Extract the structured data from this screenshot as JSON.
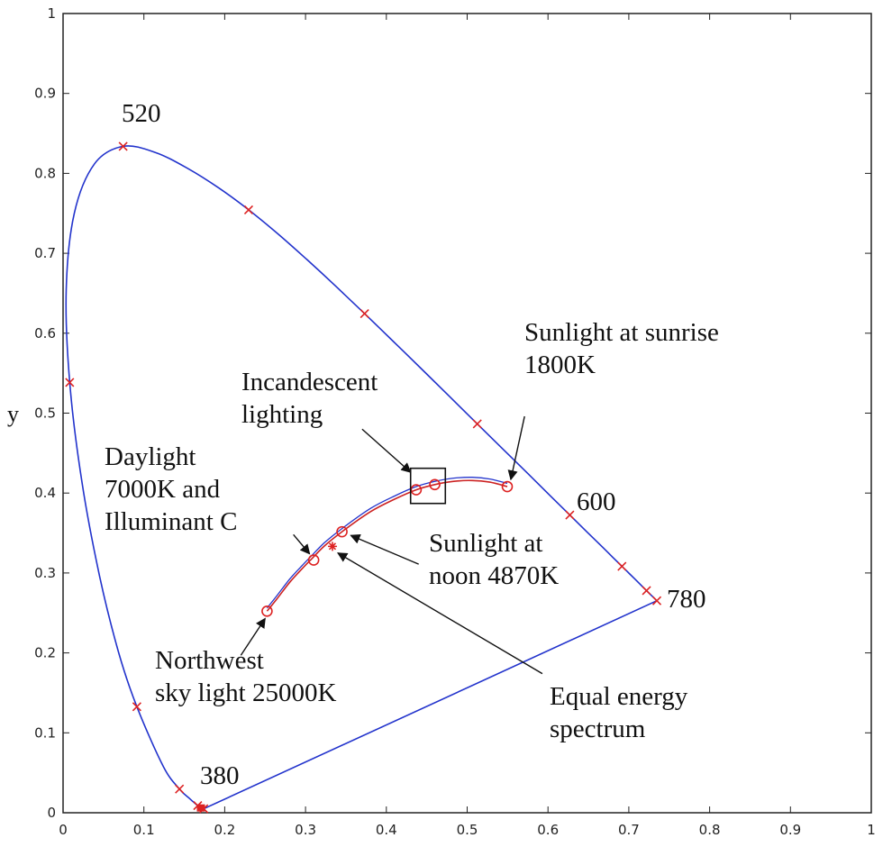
{
  "chart_data": {
    "type": "line",
    "title": "",
    "xlabel": "",
    "ylabel": "y",
    "xlim": [
      0,
      1
    ],
    "ylim": [
      0,
      1
    ],
    "grid": false,
    "x_ticks": [
      "0",
      "0.1",
      "0.2",
      "0.3",
      "0.4",
      "0.5",
      "0.6",
      "0.7",
      "0.8",
      "0.9",
      "1"
    ],
    "y_ticks": [
      "0",
      "0.1",
      "0.2",
      "0.3",
      "0.4",
      "0.5",
      "0.6",
      "0.7",
      "0.8",
      "0.9",
      "1"
    ],
    "colors": {
      "locus": "#2233cc",
      "planckian": "#cc2222",
      "marker": "#dd2222",
      "axis": "#222222"
    },
    "series": [
      {
        "name": "spectral locus",
        "color": "#2233cc",
        "points": [
          [
            0.1741,
            0.005
          ],
          [
            0.172,
            0.0048
          ],
          [
            0.1666,
            0.0089
          ],
          [
            0.1566,
            0.0177
          ],
          [
            0.144,
            0.0297
          ],
          [
            0.1241,
            0.0578
          ],
          [
            0.0913,
            0.1327
          ],
          [
            0.0687,
            0.2007
          ],
          [
            0.0454,
            0.295
          ],
          [
            0.0235,
            0.4127
          ],
          [
            0.0082,
            0.5384
          ],
          [
            0.0039,
            0.6548
          ],
          [
            0.0139,
            0.7502
          ],
          [
            0.0389,
            0.812
          ],
          [
            0.0743,
            0.8338
          ],
          [
            0.1142,
            0.8262
          ],
          [
            0.1547,
            0.8059
          ],
          [
            0.1929,
            0.7816
          ],
          [
            0.2296,
            0.7543
          ],
          [
            0.2658,
            0.7243
          ],
          [
            0.3016,
            0.6923
          ],
          [
            0.3373,
            0.6589
          ],
          [
            0.3731,
            0.6245
          ],
          [
            0.4087,
            0.5896
          ],
          [
            0.4441,
            0.5547
          ],
          [
            0.4788,
            0.5202
          ],
          [
            0.5125,
            0.4866
          ],
          [
            0.5448,
            0.4544
          ],
          [
            0.5752,
            0.4242
          ],
          [
            0.6029,
            0.3965
          ],
          [
            0.627,
            0.3725
          ],
          [
            0.6482,
            0.3514
          ],
          [
            0.6658,
            0.334
          ],
          [
            0.6801,
            0.3197
          ],
          [
            0.6915,
            0.3083
          ],
          [
            0.7006,
            0.2993
          ],
          [
            0.714,
            0.2859
          ],
          [
            0.7219,
            0.278
          ],
          [
            0.7347,
            0.2653
          ],
          [
            0.1741,
            0.005
          ]
        ]
      },
      {
        "name": "blackbody locus",
        "color": "#cc2222",
        "points": [
          [
            0.2524,
            0.2522
          ],
          [
            0.2643,
            0.2672
          ],
          [
            0.2804,
            0.2883
          ],
          [
            0.2952,
            0.3047
          ],
          [
            0.3066,
            0.3166
          ],
          [
            0.3231,
            0.3336
          ],
          [
            0.3451,
            0.3516
          ],
          [
            0.3805,
            0.3768
          ],
          [
            0.4101,
            0.3923
          ],
          [
            0.4369,
            0.4041
          ],
          [
            0.4599,
            0.4106
          ],
          [
            0.4835,
            0.4147
          ],
          [
            0.5064,
            0.4157
          ],
          [
            0.5281,
            0.4136
          ],
          [
            0.5496,
            0.4081
          ]
        ]
      }
    ],
    "x_markers": [
      [
        0.1741,
        0.005
      ],
      [
        0.1666,
        0.0089
      ],
      [
        0.144,
        0.0297
      ],
      [
        0.0913,
        0.1327
      ],
      [
        0.0082,
        0.5384
      ],
      [
        0.0743,
        0.8338
      ],
      [
        0.2296,
        0.7543
      ],
      [
        0.3731,
        0.6245
      ],
      [
        0.5125,
        0.4866
      ],
      [
        0.627,
        0.3725
      ],
      [
        0.6915,
        0.3083
      ],
      [
        0.7219,
        0.278
      ],
      [
        0.7347,
        0.2653
      ]
    ],
    "o_markers": [
      [
        0.2524,
        0.2522
      ],
      [
        0.3101,
        0.3162
      ],
      [
        0.3451,
        0.3516
      ],
      [
        0.4369,
        0.4041
      ],
      [
        0.4599,
        0.4106
      ],
      [
        0.5496,
        0.4081
      ]
    ],
    "star_markers": [
      [
        0.3333,
        0.3333
      ]
    ],
    "box": {
      "x": [
        0.43,
        0.473
      ],
      "y": [
        0.387,
        0.431
      ]
    },
    "annotations": {
      "wl_520": "520",
      "wl_600": "600",
      "wl_780": "780",
      "wl_380": "380",
      "sunrise_1": "Sunlight at sunrise",
      "sunrise_2": "1800K",
      "incand_1": "Incandescent",
      "incand_2": "lighting",
      "daylight_1": "Daylight",
      "daylight_2": "7000K and",
      "daylight_3": "Illuminant C",
      "noon_1": "Sunlight at",
      "noon_2": "noon 4870K",
      "northwest_1": "Northwest",
      "northwest_2": "sky light 25000K",
      "equal_1": "Equal energy",
      "equal_2": "spectrum"
    },
    "arrows": [
      {
        "name": "sunrise-arrow",
        "from": [
          0.571,
          0.496
        ],
        "to": [
          0.554,
          0.417
        ]
      },
      {
        "name": "incandescent-arrow",
        "from": [
          0.37,
          0.48
        ],
        "to": [
          0.43,
          0.426
        ]
      },
      {
        "name": "daylight-arrow",
        "from": [
          0.285,
          0.348
        ],
        "to": [
          0.305,
          0.324
        ]
      },
      {
        "name": "noon-arrow",
        "from": [
          0.44,
          0.311
        ],
        "to": [
          0.356,
          0.347
        ]
      },
      {
        "name": "equal-energy-arrow",
        "from": [
          0.593,
          0.174
        ],
        "to": [
          0.34,
          0.325
        ]
      },
      {
        "name": "northwest-arrow",
        "from": [
          0.22,
          0.197
        ],
        "to": [
          0.25,
          0.243
        ]
      }
    ]
  }
}
